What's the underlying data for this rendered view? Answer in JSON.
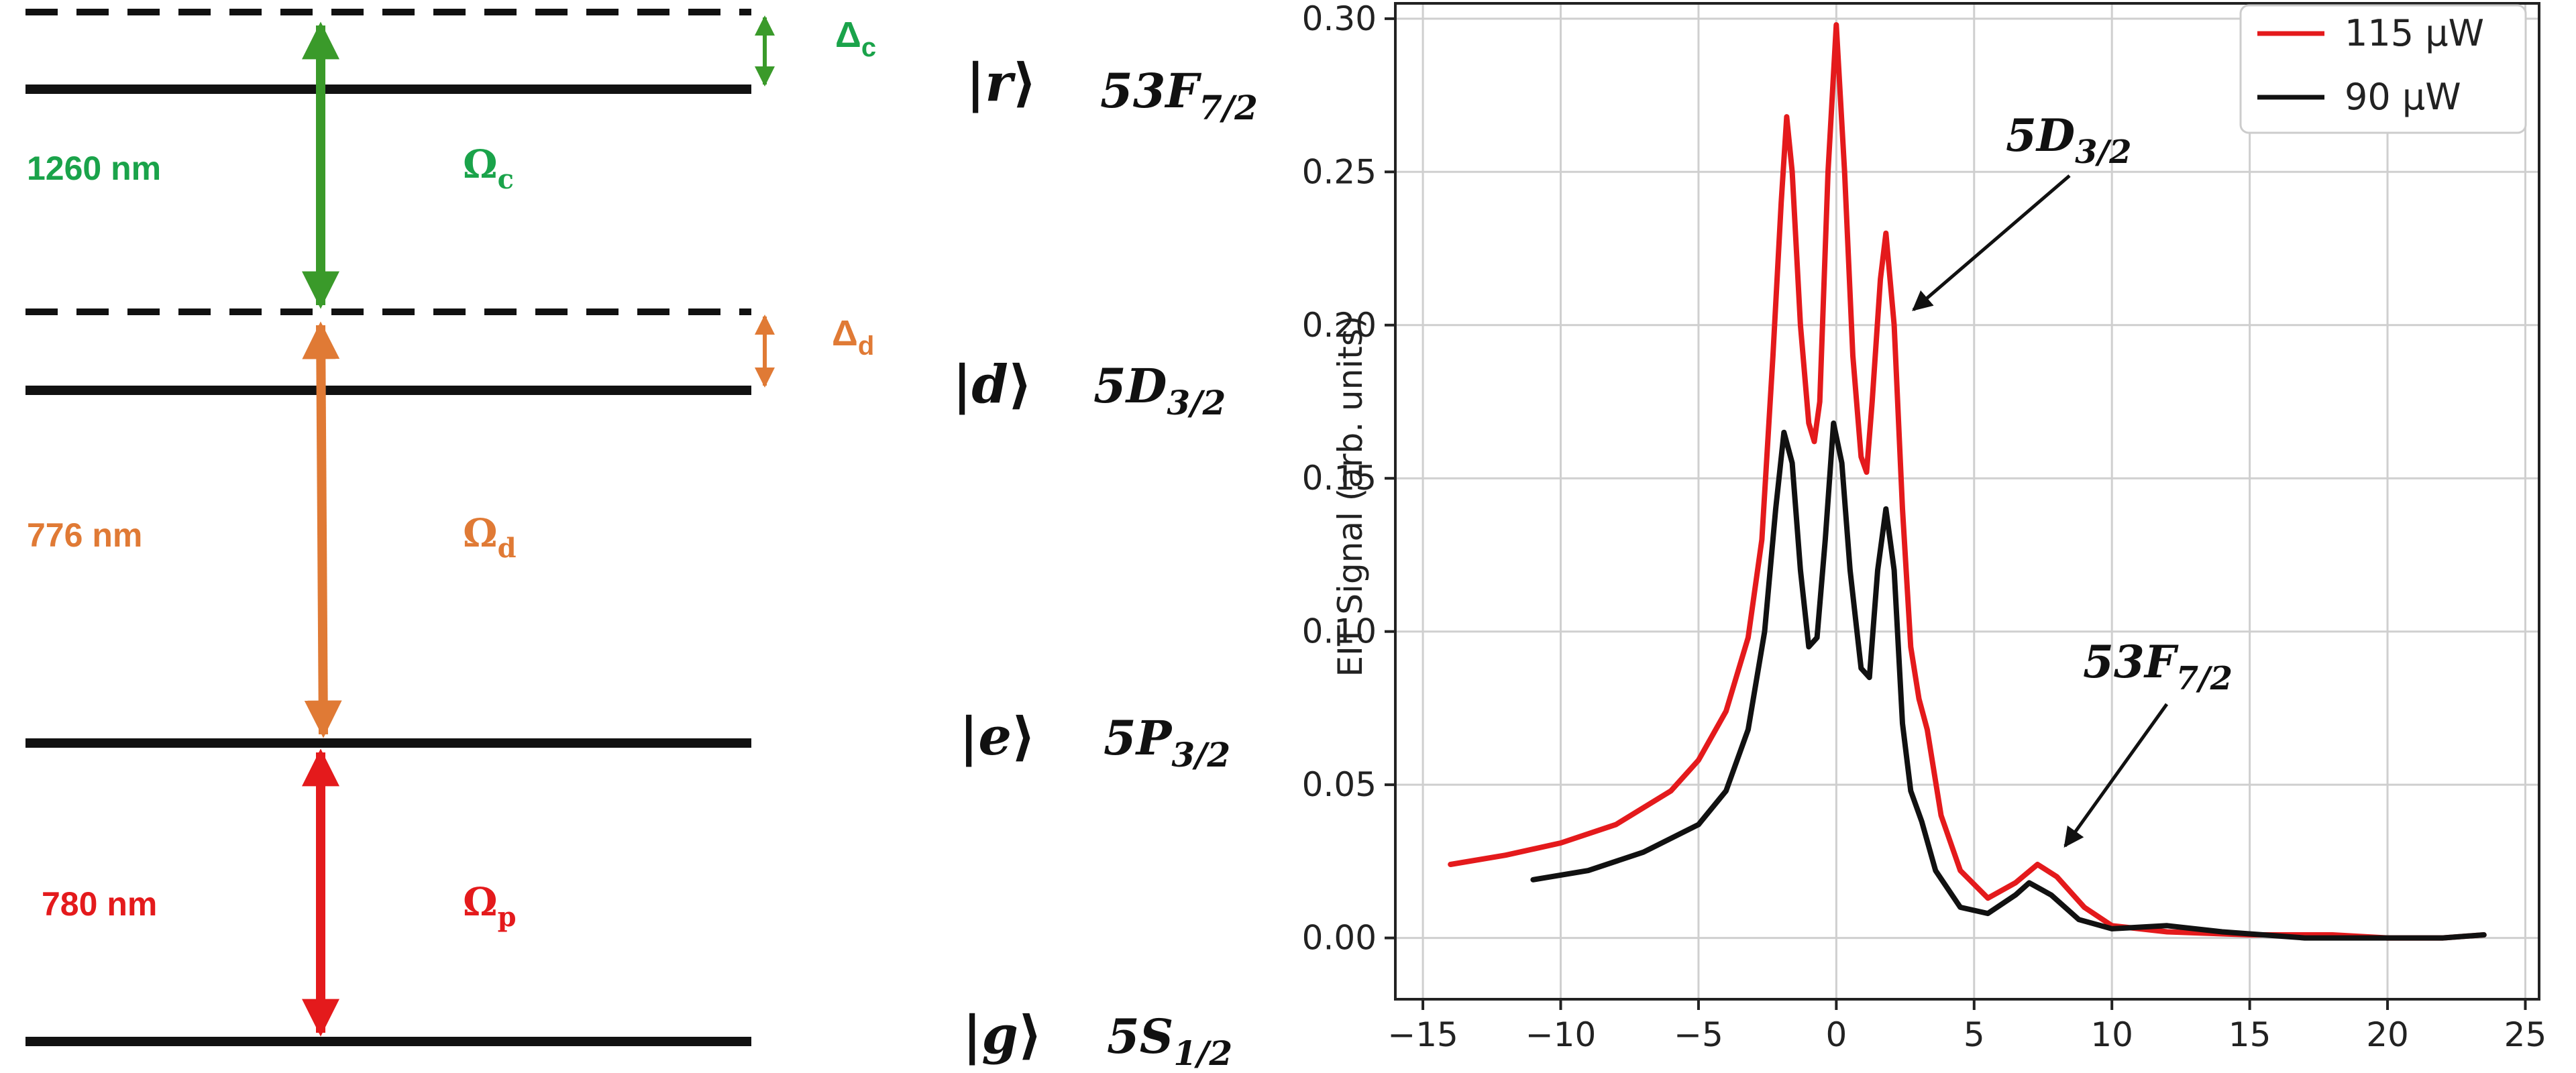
{
  "diagram": {
    "colors": {
      "coupling": "#3a9a2a",
      "coupling_text": "#1aa34a",
      "dressing": "#e07a35",
      "probe": "#e41a1c"
    },
    "labels": {
      "coupling_wavelength": "1260 nm",
      "dressing_wavelength": "776 nm",
      "probe_wavelength": "780 nm",
      "omega_c": "Ω",
      "omega_c_sub": "c",
      "omega_d": "Ω",
      "omega_d_sub": "d",
      "omega_p": "Ω",
      "omega_p_sub": "p",
      "delta_c": "Δ",
      "delta_c_sub": "c",
      "delta_d": "Δ",
      "delta_d_sub": "d"
    },
    "states": [
      {
        "ket": "r",
        "name": "53F",
        "sub": "7/2"
      },
      {
        "ket": "d",
        "name": "5D",
        "sub": "3/2"
      },
      {
        "ket": "e",
        "name": "5P",
        "sub": "3/2"
      },
      {
        "ket": "g",
        "name": "5S",
        "sub": "1/2"
      }
    ]
  },
  "chart_data": {
    "type": "line",
    "xlabel": "",
    "ylabel": "EIT Signal (arb. units)",
    "xlim": [
      -16,
      25.5
    ],
    "ylim": [
      -0.02,
      0.305
    ],
    "xticks": [
      -15,
      -10,
      -5,
      0,
      5,
      10,
      15,
      20,
      25
    ],
    "xtick_labels": [
      "−15",
      "−10",
      "−5",
      "0",
      "5",
      "10",
      "15",
      "20",
      "25"
    ],
    "yticks": [
      0.0,
      0.05,
      0.1,
      0.15,
      0.2,
      0.25,
      0.3
    ],
    "ytick_labels": [
      "0.00",
      "0.05",
      "0.10",
      "0.15",
      "0.20",
      "0.25",
      "0.30"
    ],
    "grid": true,
    "legend": "top-right",
    "series": [
      {
        "name": "115 μW",
        "color": "#e41a1c",
        "points": [
          [
            -14,
            0.024
          ],
          [
            -12,
            0.027
          ],
          [
            -10,
            0.031
          ],
          [
            -8,
            0.037
          ],
          [
            -6,
            0.048
          ],
          [
            -5,
            0.058
          ],
          [
            -4,
            0.074
          ],
          [
            -3.2,
            0.098
          ],
          [
            -2.7,
            0.13
          ],
          [
            -2.3,
            0.19
          ],
          [
            -2.0,
            0.24
          ],
          [
            -1.8,
            0.268
          ],
          [
            -1.6,
            0.25
          ],
          [
            -1.3,
            0.2
          ],
          [
            -1.0,
            0.168
          ],
          [
            -0.8,
            0.162
          ],
          [
            -0.6,
            0.175
          ],
          [
            -0.3,
            0.25
          ],
          [
            0,
            0.298
          ],
          [
            0.3,
            0.25
          ],
          [
            0.6,
            0.19
          ],
          [
            0.9,
            0.157
          ],
          [
            1.1,
            0.152
          ],
          [
            1.3,
            0.175
          ],
          [
            1.6,
            0.215
          ],
          [
            1.8,
            0.23
          ],
          [
            2.1,
            0.2
          ],
          [
            2.4,
            0.14
          ],
          [
            2.7,
            0.095
          ],
          [
            3.0,
            0.078
          ],
          [
            3.3,
            0.068
          ],
          [
            3.8,
            0.04
          ],
          [
            4.5,
            0.022
          ],
          [
            5.5,
            0.013
          ],
          [
            6.5,
            0.018
          ],
          [
            7.3,
            0.024
          ],
          [
            8.0,
            0.02
          ],
          [
            9.0,
            0.01
          ],
          [
            10,
            0.004
          ],
          [
            12,
            0.002
          ],
          [
            15,
            0.001
          ],
          [
            18,
            0.001
          ],
          [
            20,
            0.0
          ],
          [
            22,
            0.0
          ],
          [
            23.5,
            0.001
          ]
        ]
      },
      {
        "name": "90 μW",
        "color": "#111111",
        "points": [
          [
            -11,
            0.019
          ],
          [
            -9,
            0.022
          ],
          [
            -7,
            0.028
          ],
          [
            -5,
            0.037
          ],
          [
            -4,
            0.048
          ],
          [
            -3.2,
            0.068
          ],
          [
            -2.6,
            0.1
          ],
          [
            -2.2,
            0.14
          ],
          [
            -1.9,
            0.165
          ],
          [
            -1.6,
            0.155
          ],
          [
            -1.3,
            0.12
          ],
          [
            -1.0,
            0.095
          ],
          [
            -0.7,
            0.098
          ],
          [
            -0.4,
            0.13
          ],
          [
            -0.1,
            0.168
          ],
          [
            0.2,
            0.155
          ],
          [
            0.5,
            0.12
          ],
          [
            0.9,
            0.088
          ],
          [
            1.2,
            0.085
          ],
          [
            1.5,
            0.12
          ],
          [
            1.8,
            0.14
          ],
          [
            2.1,
            0.12
          ],
          [
            2.4,
            0.07
          ],
          [
            2.7,
            0.048
          ],
          [
            3.1,
            0.038
          ],
          [
            3.6,
            0.022
          ],
          [
            4.5,
            0.01
          ],
          [
            5.5,
            0.008
          ],
          [
            6.5,
            0.014
          ],
          [
            7.0,
            0.018
          ],
          [
            7.8,
            0.014
          ],
          [
            8.8,
            0.006
          ],
          [
            10,
            0.003
          ],
          [
            12,
            0.004
          ],
          [
            14,
            0.002
          ],
          [
            17,
            0.0
          ],
          [
            20,
            0.0
          ],
          [
            22,
            0.0
          ],
          [
            23.5,
            0.001
          ]
        ]
      }
    ],
    "annotations": [
      {
        "name": "5D",
        "sub": "3/2",
        "arrow_to": [
          2.8,
          0.205
        ]
      },
      {
        "name": "53F",
        "sub": "7/2",
        "arrow_to": [
          8.3,
          0.03
        ]
      }
    ]
  }
}
